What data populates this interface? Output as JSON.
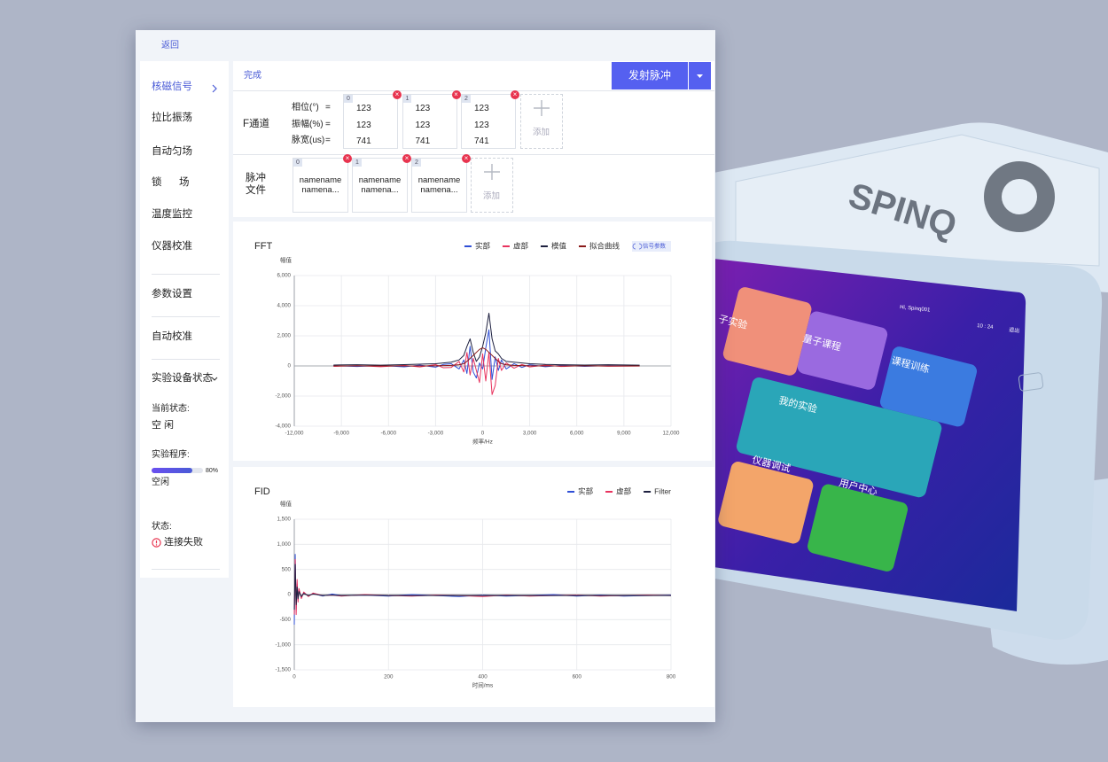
{
  "header": {
    "back": "返回"
  },
  "sidebar": {
    "menu": [
      "核磁信号",
      "拉比振荡",
      "自动匀场",
      "锁　场",
      "温度监控",
      "仪器校准",
      "参数设置",
      "自动校准",
      "实验设备状态"
    ],
    "status": {
      "current_label": "当前状态:",
      "current": "空 闲",
      "program_label": "实验程序:",
      "progress": {
        "value": 80,
        "label": "80%"
      },
      "program": "空闲",
      "state_label": "状态:",
      "state": "连接失败"
    }
  },
  "toolbar": {
    "done": "完成",
    "fire": "发射脉冲"
  },
  "f_channel": {
    "label": "F通道",
    "row_labels": [
      "相位(°)",
      "振幅(%)",
      "脉宽(us)"
    ],
    "equals": "=",
    "cards": [
      {
        "index": 0,
        "values": [
          123,
          123,
          741
        ]
      },
      {
        "index": 1,
        "values": [
          123,
          123,
          741
        ]
      },
      {
        "index": 2,
        "values": [
          123,
          123,
          741
        ]
      }
    ],
    "add": "添加"
  },
  "pulse_files": {
    "label": [
      "脉冲",
      "文件"
    ],
    "cards": [
      {
        "index": 0,
        "lines": [
          "namename",
          "namena..."
        ]
      },
      {
        "index": 1,
        "lines": [
          "namename",
          "namena..."
        ]
      },
      {
        "index": 2,
        "lines": [
          "namename",
          "namena..."
        ]
      }
    ],
    "add": "添加"
  },
  "device": {
    "brand": "SPINQ",
    "greeting": "Hi, Spinq001",
    "time": "10 : 24",
    "logout": "退出",
    "tiles": [
      "子实验",
      "量子课程",
      "课程训练",
      "我的实验",
      "仪器调试",
      "用户中心"
    ]
  },
  "chart_data": [
    {
      "type": "line",
      "title": "FFT",
      "y_label": "幅值",
      "x_label": "频率/Hz",
      "legend": "top-right",
      "legend_button": "信号参数",
      "grid": true,
      "x": [
        -9500,
        -8000,
        -6500,
        -5000,
        -4000,
        -3000,
        -2500,
        -2000,
        -1500,
        -1200,
        -1000,
        -800,
        -600,
        -400,
        -200,
        0,
        200,
        400,
        600,
        800,
        1000,
        1200,
        1500,
        2000,
        2500,
        3000,
        4000,
        5000,
        6500,
        8000,
        10000
      ],
      "series": [
        {
          "name": "实部",
          "color": "#2f4fd6",
          "values": [
            20,
            -40,
            30,
            -60,
            50,
            -80,
            100,
            150,
            -200,
            400,
            -500,
            1300,
            -400,
            -800,
            200,
            -200,
            1200,
            2400,
            -900,
            600,
            -300,
            400,
            -200,
            150,
            -100,
            80,
            -50,
            40,
            -30,
            20,
            10
          ]
        },
        {
          "name": "虚部",
          "color": "#e8335e",
          "values": [
            -30,
            20,
            -50,
            40,
            -70,
            90,
            -120,
            -100,
            300,
            -400,
            900,
            -600,
            500,
            -300,
            -1100,
            800,
            -1000,
            900,
            -1900,
            -1300,
            500,
            -300,
            200,
            -150,
            100,
            -70,
            60,
            -40,
            30,
            -20,
            -10
          ]
        },
        {
          "name": "模值",
          "color": "#1e2140",
          "values": [
            60,
            80,
            50,
            90,
            120,
            150,
            200,
            250,
            400,
            700,
            1300,
            1800,
            900,
            300,
            600,
            1300,
            2200,
            3500,
            1800,
            1000,
            800,
            500,
            300,
            250,
            200,
            150,
            100,
            80,
            60,
            80,
            50
          ]
        },
        {
          "name": "拟合曲线",
          "color": "#8b1a1a",
          "values": [
            0,
            0,
            0,
            0,
            0,
            10,
            20,
            40,
            80,
            150,
            300,
            500,
            700,
            900,
            1100,
            1200,
            1100,
            900,
            700,
            500,
            300,
            150,
            80,
            40,
            20,
            10,
            0,
            0,
            0,
            0,
            0
          ]
        }
      ],
      "xlim": [
        -12000,
        12000
      ],
      "xticks": [
        {
          "value": -12000,
          "label": "-12,000"
        },
        {
          "value": -9000,
          "label": "-9,000"
        },
        {
          "value": -6000,
          "label": "-6,000"
        },
        {
          "value": -3000,
          "label": "-3,000"
        },
        0,
        {
          "value": 3000,
          "label": "3,000"
        },
        {
          "value": 6000,
          "label": "6,000"
        },
        {
          "value": 9000,
          "label": "9,000"
        },
        {
          "value": 12000,
          "label": "12,000"
        }
      ],
      "ylim": [
        -4000,
        6000
      ],
      "yticks": [
        {
          "value": -4000,
          "label": "-4,000"
        },
        {
          "value": -2000,
          "label": "-2,000"
        },
        0,
        {
          "value": 2000,
          "label": "2,000"
        },
        {
          "value": 4000,
          "label": "4,000"
        },
        {
          "value": 6000,
          "label": "6,000"
        }
      ]
    },
    {
      "type": "line",
      "title": "FID",
      "y_label": "幅值",
      "x_label": "时间/ms",
      "legend": "top-right",
      "grid": true,
      "x": [
        0,
        2,
        4,
        6,
        8,
        10,
        15,
        20,
        30,
        40,
        60,
        80,
        100,
        150,
        200,
        250,
        300,
        350,
        400,
        450,
        500,
        550,
        600,
        650,
        700,
        750,
        800
      ],
      "series": [
        {
          "name": "实部",
          "color": "#2f4fd6",
          "values": [
            -600,
            800,
            -300,
            200,
            -100,
            80,
            -60,
            40,
            -30,
            20,
            -30,
            10,
            -20,
            -10,
            -30,
            0,
            -20,
            -40,
            -10,
            -30,
            -20,
            0,
            -30,
            -10,
            -30,
            -20,
            -10
          ]
        },
        {
          "name": "虚部",
          "color": "#e8335e",
          "values": [
            -400,
            700,
            -400,
            300,
            -150,
            120,
            -80,
            50,
            -40,
            30,
            -20,
            -10,
            -30,
            0,
            -20,
            -30,
            -10,
            -20,
            -40,
            -10,
            -30,
            -20,
            -10,
            -30,
            -20,
            -10,
            -20
          ]
        },
        {
          "name": "Filter",
          "color": "#1e2140",
          "values": [
            -300,
            600,
            -200,
            150,
            -80,
            60,
            -40,
            20,
            -20,
            10,
            -20,
            -10,
            -20,
            -10,
            -20,
            -20,
            -20,
            -20,
            -20,
            -20,
            -20,
            -20,
            -20,
            -20,
            -20,
            -20,
            -20
          ]
        }
      ],
      "xlim": [
        0,
        800
      ],
      "xticks": [
        0,
        200,
        400,
        600,
        800
      ],
      "ylim": [
        -1500,
        1500
      ],
      "yticks": [
        {
          "value": -1500,
          "label": "-1,500"
        },
        {
          "value": -1000,
          "label": "-1,000"
        },
        -500,
        0,
        500,
        {
          "value": 1000,
          "label": "1,000"
        },
        {
          "value": 1500,
          "label": "1,500"
        }
      ]
    }
  ]
}
